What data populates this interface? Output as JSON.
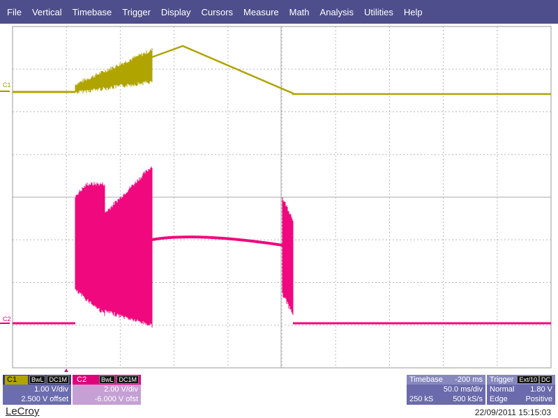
{
  "menu": [
    "File",
    "Vertical",
    "Timebase",
    "Trigger",
    "Display",
    "Cursors",
    "Measure",
    "Math",
    "Analysis",
    "Utilities",
    "Help"
  ],
  "traces": {
    "c1_label": "C1",
    "c2_label": "C2"
  },
  "channels": [
    {
      "name": "C1",
      "badges": [
        "BwL",
        "DC1M"
      ],
      "scale": "1.00 V/div",
      "offset": "2.500 V offset"
    },
    {
      "name": "C2",
      "badges": [
        "BwL",
        "DC1M"
      ],
      "scale": "2.00 V/div",
      "offset": "-6.000 V ofst"
    }
  ],
  "timebase": {
    "label": "Timebase",
    "delay": "-200 ms",
    "per_div": "50.0 ms/div",
    "samples": "250 kS",
    "sample_rate": "500 kS/s"
  },
  "trigger": {
    "label": "Trigger",
    "source": "Ext/10",
    "coupling": "DC",
    "mode": "Normal",
    "level": "1.80 V",
    "type": "Edge",
    "slope": "Positive"
  },
  "footer": {
    "brand": "LeCroy",
    "timestamp": "22/09/2011 15:15:03"
  }
}
